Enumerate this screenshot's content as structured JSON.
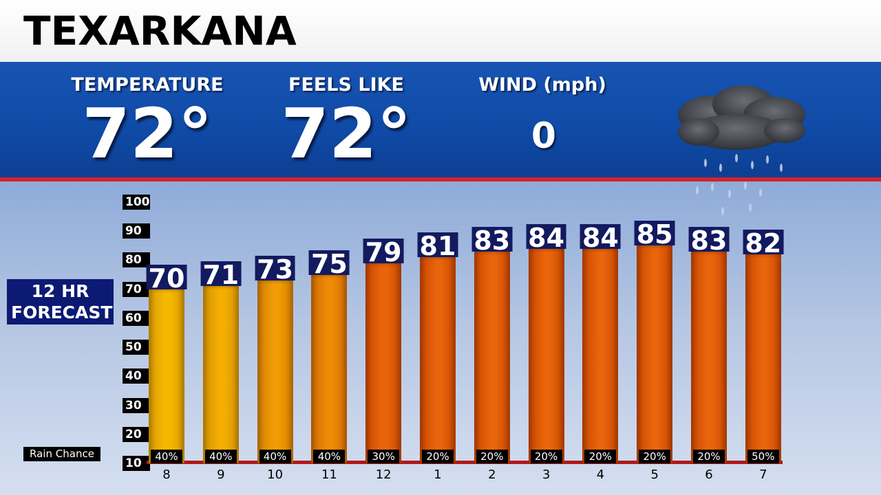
{
  "city": "TEXARKANA",
  "current": {
    "temperature_label": "TEMPERATURE",
    "temperature_value": "72°",
    "feels_like_label": "FEELS LIKE",
    "feels_like_value": "72°",
    "wind_label": "WIND (mph)",
    "wind_value": "0",
    "condition_icon": "rain-cloud-icon"
  },
  "forecast_title": "12 HR\nFORECAST",
  "rain_chance_label": "Rain Chance",
  "colors": {
    "band_blue": "#1150ab",
    "divider_red": "#d2232a",
    "label_navy": "#121a60",
    "bar_yellow": "#f5b800",
    "bar_orange": "#e8650c"
  },
  "chart_data": {
    "type": "bar",
    "categories": [
      "8",
      "9",
      "10",
      "11",
      "12",
      "1",
      "2",
      "3",
      "4",
      "5",
      "6",
      "7"
    ],
    "values": [
      70,
      71,
      73,
      75,
      79,
      81,
      83,
      84,
      84,
      85,
      83,
      82
    ],
    "rain_chance": [
      "40%",
      "40%",
      "40%",
      "40%",
      "30%",
      "20%",
      "20%",
      "20%",
      "20%",
      "20%",
      "20%",
      "50%"
    ],
    "y_ticks": [
      "10",
      "20",
      "30",
      "40",
      "50",
      "60",
      "70",
      "80",
      "90",
      "100"
    ],
    "ylim": [
      10,
      100
    ],
    "title": "12 HR FORECAST",
    "xlabel": "",
    "ylabel": ""
  }
}
